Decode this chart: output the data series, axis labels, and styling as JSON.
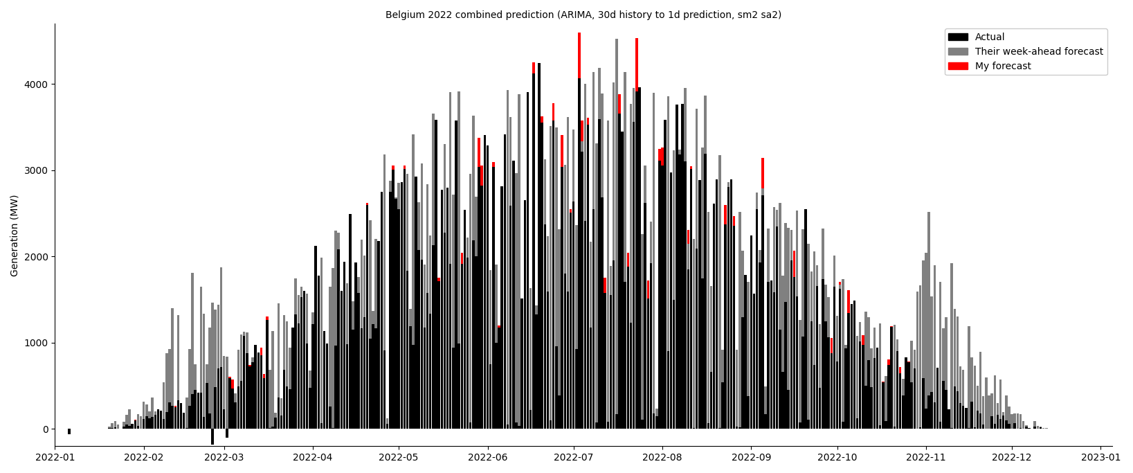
{
  "title": "Belgium 2022 combined prediction (ARIMA, 30d history to 1d prediction, sm2 sa2)",
  "ylabel": "Generation (MW)",
  "bar_width": 0.85,
  "actual_color": "#000000",
  "their_color": "#808080",
  "my_color": "#ff0000",
  "legend_labels": [
    "Actual",
    "Their week-ahead forecast",
    "My forecast"
  ],
  "ylim": [
    -200,
    4700
  ],
  "title_fontsize": 10,
  "axis_fontsize": 10,
  "tick_fontsize": 10,
  "background_color": "#ffffff"
}
